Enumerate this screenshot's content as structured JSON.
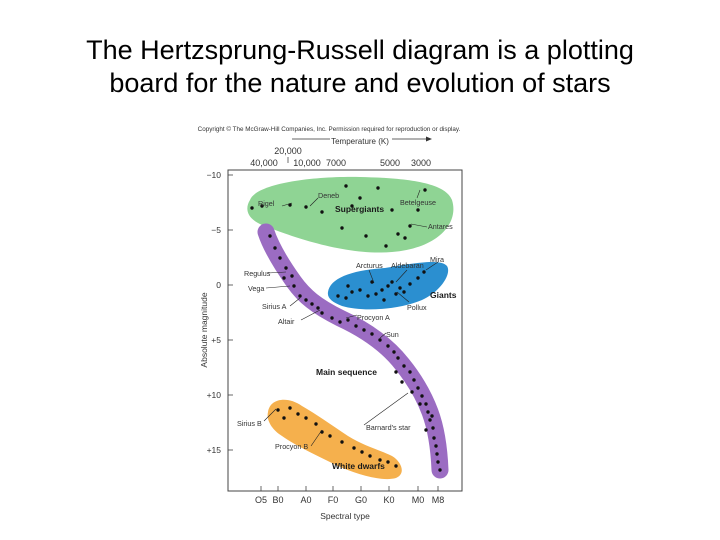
{
  "slide": {
    "title_line1": "The Hertzsprung-Russell diagram is a plotting",
    "title_line2": "board for the nature and evolution of stars"
  },
  "diagram": {
    "copyright": "Copyright © The McGraw-Hill Companies, Inc. Permission required for reproduction or display.",
    "temperature_label": "Temperature (K)",
    "temperature_ticks": [
      "20,000",
      "40,000",
      "10,000",
      "7000",
      "5000",
      "3000"
    ],
    "magnitude_ticks": [
      "−10",
      "−5",
      "0",
      "+5",
      "+10",
      "+15"
    ],
    "y_axis_label": "Absolute magnitude",
    "x_axis_label": "Spectral type",
    "spectral_ticks": [
      "O5",
      "B0",
      "A0",
      "F0",
      "G0",
      "K0",
      "M0",
      "M8"
    ],
    "regions": {
      "supergiants": "Supergiants",
      "giants": "Giants",
      "main_sequence": "Main sequence",
      "white_dwarfs": "White dwarfs"
    },
    "stars": {
      "rigel": "Rigel",
      "deneb": "Deneb",
      "betelgeuse": "Betelgeuse",
      "antares": "Antares",
      "mira": "Mira",
      "arcturus": "Arcturus",
      "aldebaran": "Aldebaran",
      "pollux": "Pollux",
      "regulus": "Regulus",
      "vega": "Vega",
      "sirius_a": "Sirius A",
      "altair": "Altair",
      "procyon_a": "Procyon A",
      "sun": "Sun",
      "sirius_b": "Sirius B",
      "procyon_b": "Procyon B",
      "barnards_star": "Barnard's star"
    },
    "colors": {
      "supergiants": "#8fd494",
      "giants": "#2b8fd0",
      "main_sequence": "#9b6cc2",
      "white_dwarfs": "#f5b04d"
    }
  }
}
